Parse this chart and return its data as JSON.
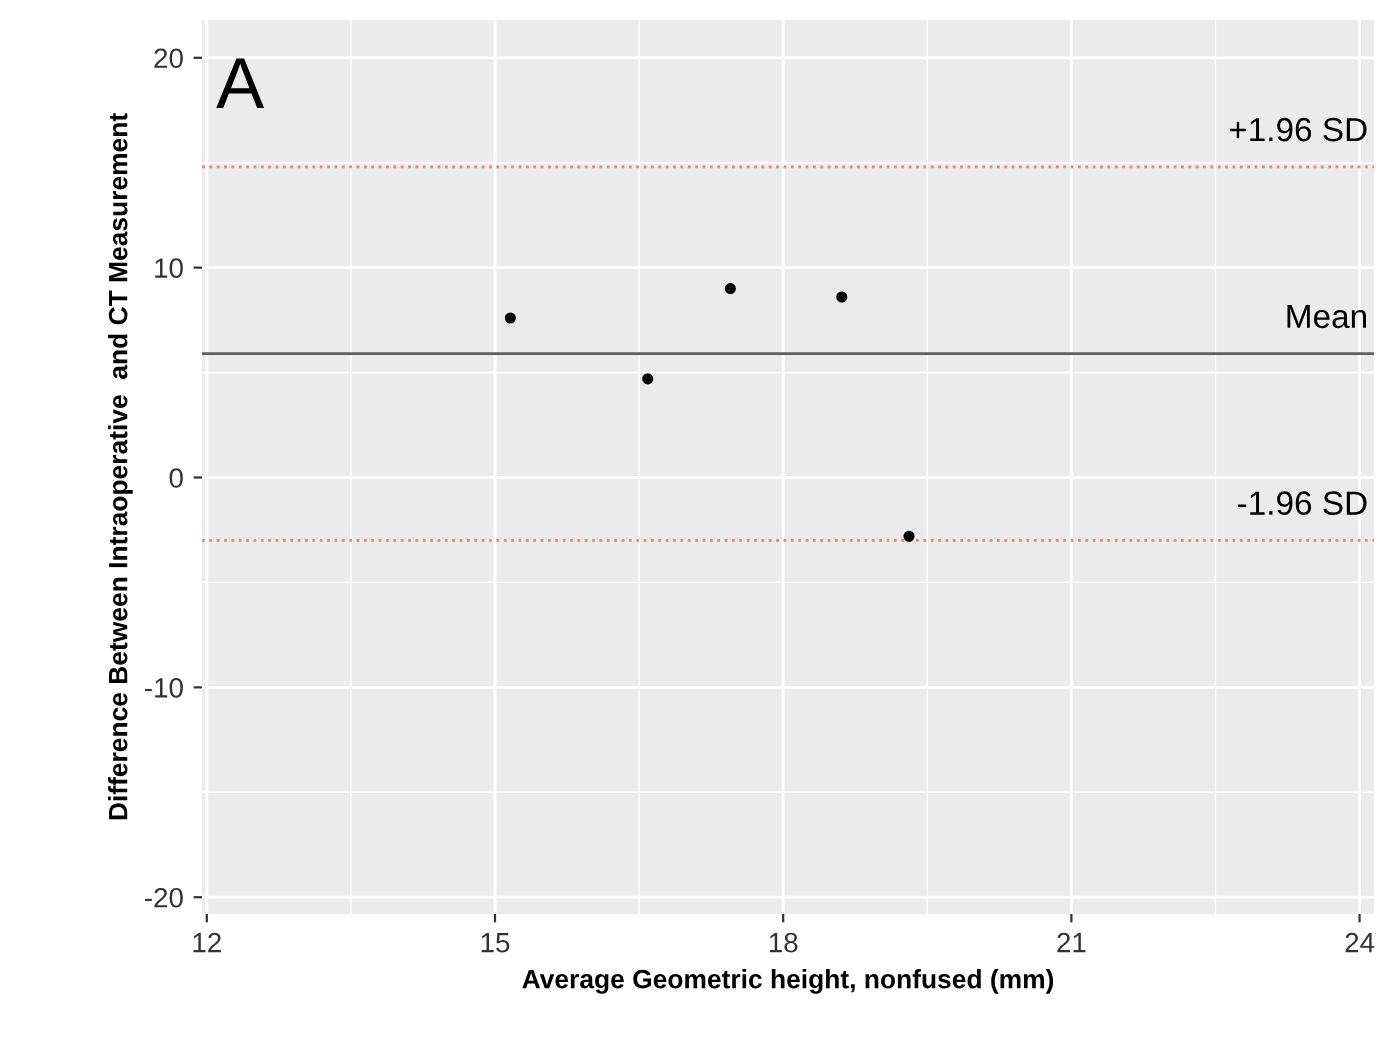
{
  "chart_data": {
    "type": "scatter",
    "xlabel": "Average Geometric height, nonfused (mm)",
    "ylabel": "Difference Between Intraoperative  and CT Measurement",
    "x": [
      15.16,
      16.59,
      17.45,
      18.61,
      19.31
    ],
    "series": [
      {
        "color": "#000000",
        "values": [
          7.6,
          4.7,
          9.0,
          8.6,
          -2.8
        ]
      }
    ],
    "marker": "circle",
    "xlim": [
      11.95,
      24.15
    ],
    "xticks": [
      12,
      15,
      18,
      21,
      24
    ],
    "ylim": [
      -20.8,
      21.8
    ],
    "yticks": [
      -20,
      -10,
      0,
      10,
      20
    ],
    "grid": true,
    "ref_lines": [
      {
        "axis": "y",
        "value": 14.8,
        "label": "+1.96 SD",
        "color": "#f08080",
        "line_style": "dotted"
      },
      {
        "axis": "y",
        "value": 5.9,
        "label": "Mean",
        "color": "#606060",
        "line_style": "solid"
      },
      {
        "axis": "y",
        "value": -3.0,
        "label": "-1.96 SD",
        "color": "#f08080",
        "line_style": "dotted"
      }
    ],
    "annotations": [
      "A"
    ]
  }
}
